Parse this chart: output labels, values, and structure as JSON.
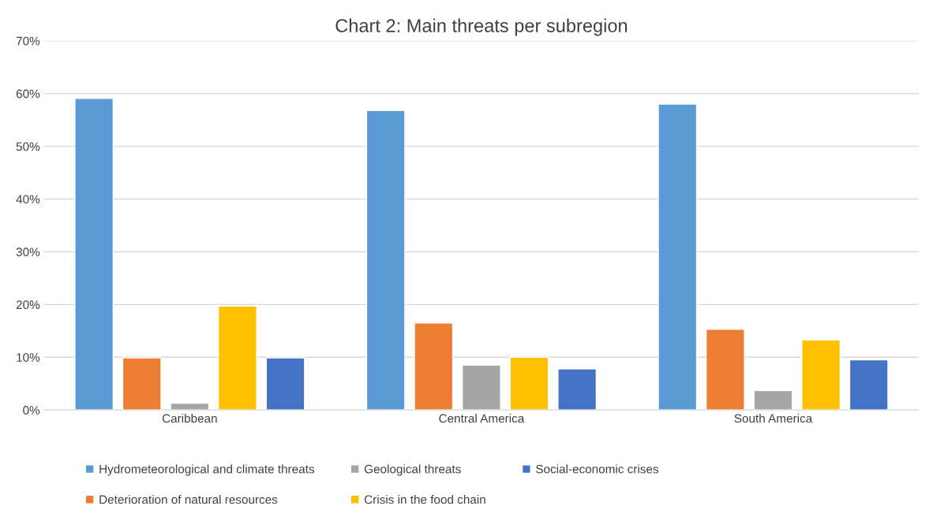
{
  "chart_data": {
    "type": "bar",
    "title": "Chart 2: Main threats per subregion",
    "categories": [
      "Caribbean",
      "Central America",
      "South America"
    ],
    "series": [
      {
        "name": "Hydrometeorological and climate threats",
        "color": "#5b9bd5",
        "values": [
          59.1,
          56.8,
          58.0
        ]
      },
      {
        "name": "Deterioration of natural resources",
        "color": "#ed7d31",
        "values": [
          9.9,
          16.5,
          15.3
        ]
      },
      {
        "name": "Geological threats",
        "color": "#a5a5a5",
        "values": [
          1.3,
          8.5,
          3.7
        ]
      },
      {
        "name": "Crisis in the food chain",
        "color": "#ffc000",
        "values": [
          19.7,
          10.0,
          13.3
        ]
      },
      {
        "name": "Social-economic crises",
        "color": "#4472c4",
        "values": [
          9.9,
          7.8,
          9.5
        ]
      }
    ],
    "ylim": [
      0,
      70
    ],
    "yticks": [
      {
        "value": 0,
        "label": "0%"
      },
      {
        "value": 10,
        "label": "10%"
      },
      {
        "value": 20,
        "label": "20%"
      },
      {
        "value": 30,
        "label": "30%"
      },
      {
        "value": 40,
        "label": "40%"
      },
      {
        "value": 50,
        "label": "50%"
      },
      {
        "value": 60,
        "label": "60%"
      },
      {
        "value": 70,
        "label": "70%"
      }
    ],
    "grid": "y",
    "legend": "bottom"
  }
}
